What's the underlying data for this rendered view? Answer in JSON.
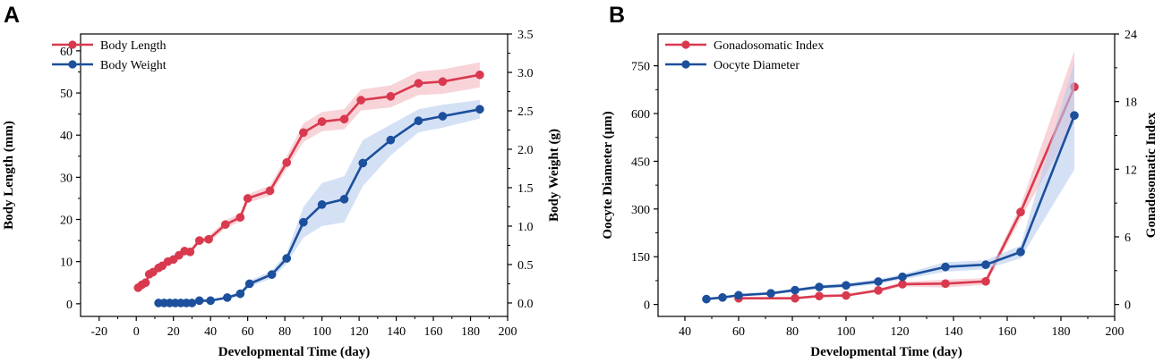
{
  "chart_data": [
    {
      "panel": "A",
      "type": "line",
      "xlabel": "Developmental Time (day)",
      "ylabel_left": "Body Length (mm)",
      "ylabel_right": "Body Weight (g)",
      "xlim": [
        -30,
        200
      ],
      "x_ticks": [
        -20,
        0,
        20,
        40,
        60,
        80,
        100,
        120,
        140,
        160,
        180,
        200
      ],
      "ylim_left": [
        -3,
        64
      ],
      "y_ticks_left": [
        0,
        10,
        20,
        30,
        40,
        50,
        60
      ],
      "ylim_right": [
        -0.175,
        3.5
      ],
      "y_ticks_right": [
        0.0,
        0.5,
        1.0,
        1.5,
        2.0,
        2.5,
        3.0,
        3.5
      ],
      "y_ticks_right_labels": [
        "0.0",
        "0.5",
        "1.0",
        "1.5",
        "2.0",
        "2.5",
        "3.0",
        "3.5"
      ],
      "legend_position": "top-left",
      "series": [
        {
          "name": "Body Length",
          "axis": "left",
          "color": "#d9394e",
          "band_color": "#f4b7bf",
          "x": [
            1,
            3,
            5,
            7,
            9,
            12,
            14,
            17,
            20,
            23,
            26,
            29,
            34,
            39,
            48,
            56,
            60,
            72,
            81,
            90,
            100,
            112,
            121,
            137,
            152,
            165,
            185
          ],
          "y": [
            3.8,
            4.5,
            5.0,
            7.0,
            7.5,
            8.5,
            9.0,
            10.0,
            10.5,
            11.5,
            12.5,
            12.3,
            15.0,
            15.3,
            18.8,
            20.5,
            25.0,
            26.8,
            33.5,
            40.6,
            43.2,
            43.8,
            48.3,
            49.2,
            52.3,
            52.7,
            54.3
          ],
          "spread": [
            0.3,
            0.3,
            0.3,
            0.4,
            0.4,
            0.4,
            0.4,
            0.5,
            0.5,
            0.5,
            0.6,
            0.6,
            0.7,
            0.8,
            0.9,
            1.0,
            1.0,
            1.2,
            1.5,
            2.2,
            2.3,
            2.4,
            2.5,
            2.6,
            2.8,
            2.9,
            3.0
          ]
        },
        {
          "name": "Body Weight",
          "axis": "right",
          "color": "#1c4f9c",
          "band_color": "#b8cdee",
          "x": [
            12,
            15,
            18,
            21,
            24,
            27,
            30,
            34,
            40,
            49,
            56,
            61,
            73,
            81,
            90,
            100,
            112,
            122,
            137,
            152,
            165,
            185
          ],
          "y": [
            0.0,
            0.0,
            0.0,
            0.0,
            0.0,
            0.0,
            0.0,
            0.03,
            0.03,
            0.07,
            0.12,
            0.25,
            0.37,
            0.58,
            1.05,
            1.28,
            1.35,
            1.82,
            2.12,
            2.37,
            2.43,
            2.52
          ],
          "spread": [
            0.0,
            0.0,
            0.0,
            0.0,
            0.0,
            0.0,
            0.0,
            0.01,
            0.01,
            0.02,
            0.03,
            0.04,
            0.05,
            0.07,
            0.2,
            0.28,
            0.3,
            0.3,
            0.2,
            0.15,
            0.15,
            0.12
          ]
        }
      ]
    },
    {
      "panel": "B",
      "type": "line",
      "xlabel": "Developmental Time (day)",
      "ylabel_left": "Oocyte Diameter (μm)",
      "ylabel_right": "Gonadosomatic Index",
      "xlim": [
        30,
        200
      ],
      "x_ticks": [
        40,
        60,
        80,
        100,
        120,
        140,
        160,
        180,
        200
      ],
      "ylim_left": [
        -37.5,
        850
      ],
      "y_ticks_left": [
        0,
        150,
        300,
        450,
        600,
        750
      ],
      "ylim_right": [
        -1.0588,
        24
      ],
      "y_ticks_right": [
        0,
        6,
        12,
        18,
        24
      ],
      "y_ticks_right_labels": [
        "0",
        "6",
        "12",
        "18",
        "24"
      ],
      "legend_position": "top-left",
      "series": [
        {
          "name": "Gonadosomatic Index",
          "axis": "right",
          "color": "#d9394e",
          "band_color": "#f4b7bf",
          "x": [
            60,
            81,
            90,
            100,
            112,
            121,
            137,
            152,
            165,
            185
          ],
          "y": [
            0.55,
            0.55,
            0.75,
            0.8,
            1.25,
            1.8,
            1.85,
            2.05,
            8.2,
            19.3
          ],
          "spread": [
            0.05,
            0.05,
            0.08,
            0.1,
            0.15,
            0.2,
            0.35,
            0.3,
            0.6,
            3.2
          ]
        },
        {
          "name": "Oocyte Diameter",
          "axis": "left",
          "color": "#1c4f9c",
          "band_color": "#b8cdee",
          "x": [
            48,
            54,
            60,
            72,
            81,
            90,
            100,
            112,
            121,
            137,
            152,
            165,
            185
          ],
          "y": [
            17,
            22,
            29,
            35,
            45,
            55,
            60,
            72,
            87,
            118,
            125,
            165,
            594
          ],
          "spread": [
            2,
            3,
            3,
            4,
            5,
            6,
            7,
            8,
            8,
            15,
            14,
            20,
            170
          ]
        }
      ]
    }
  ],
  "panel_labels": [
    "A",
    "B"
  ]
}
